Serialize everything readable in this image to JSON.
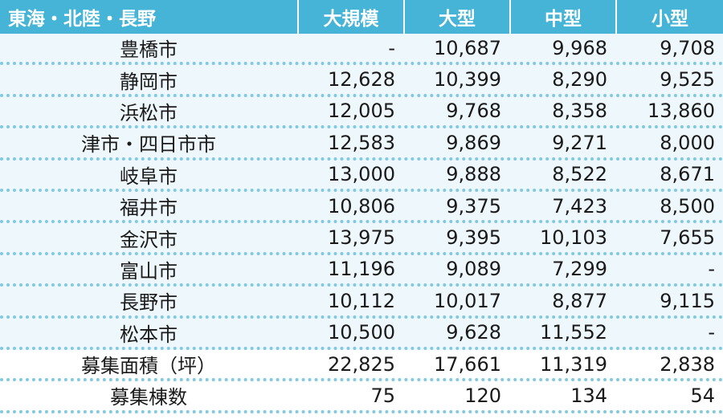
{
  "header": {
    "region": "東海・北陸・長野",
    "columns": [
      "大規模",
      "大型",
      "中型",
      "小型"
    ]
  },
  "rows": [
    {
      "name": "豊橋市",
      "values": [
        "-",
        "10,687",
        "9,968",
        "9,708"
      ]
    },
    {
      "name": "静岡市",
      "values": [
        "12,628",
        "10,399",
        "8,290",
        "9,525"
      ]
    },
    {
      "name": "浜松市",
      "values": [
        "12,005",
        "9,768",
        "8,358",
        "13,860"
      ]
    },
    {
      "name": "津市・四日市市",
      "values": [
        "12,583",
        "9,869",
        "9,271",
        "8,000"
      ]
    },
    {
      "name": "岐阜市",
      "values": [
        "13,000",
        "9,888",
        "8,522",
        "8,671"
      ]
    },
    {
      "name": "福井市",
      "values": [
        "10,806",
        "9,375",
        "7,423",
        "8,500"
      ]
    },
    {
      "name": "金沢市",
      "values": [
        "13,975",
        "9,395",
        "10,103",
        "7,655"
      ]
    },
    {
      "name": "富山市",
      "values": [
        "11,196",
        "9,089",
        "7,299",
        "-"
      ]
    },
    {
      "name": "長野市",
      "values": [
        "10,112",
        "10,017",
        "8,877",
        "9,115"
      ]
    },
    {
      "name": "松本市",
      "values": [
        "10,500",
        "9,628",
        "11,552",
        "-"
      ]
    },
    {
      "name": "募集面積（坪）",
      "values": [
        "22,825",
        "17,661",
        "11,319",
        "2,838"
      ]
    },
    {
      "name": "募集棟数",
      "values": [
        "75",
        "120",
        "134",
        "54"
      ]
    }
  ]
}
